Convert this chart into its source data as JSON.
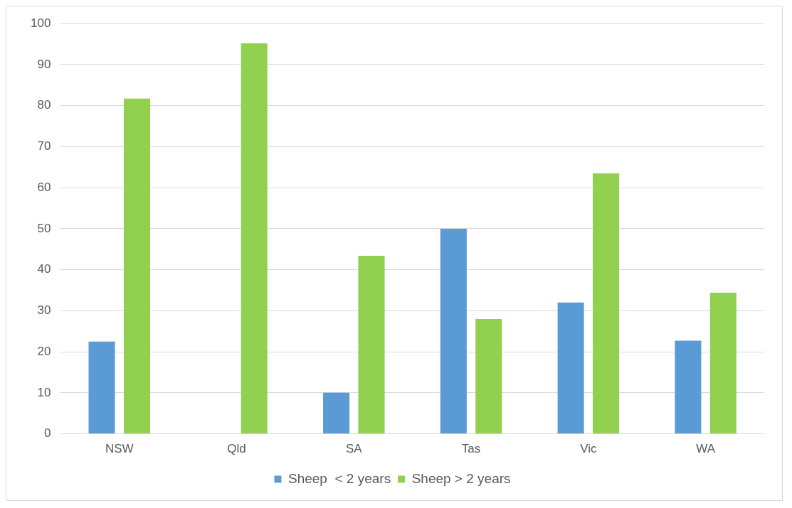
{
  "chart_data": {
    "type": "bar",
    "categories": [
      "NSW",
      "Qld",
      "SA",
      "Tas",
      "Vic",
      "WA"
    ],
    "series": [
      {
        "name": "Sheep  < 2 years",
        "color": "#5b9bd5",
        "values": [
          22.5,
          0,
          10,
          50,
          32,
          22.7
        ]
      },
      {
        "name": "Sheep > 2 years",
        "color": "#92d050",
        "values": [
          81.7,
          95.2,
          43.4,
          28,
          63.5,
          34.4
        ]
      }
    ],
    "ylim": [
      0,
      100
    ],
    "yticks": [
      0,
      10,
      20,
      30,
      40,
      50,
      60,
      70,
      80,
      90,
      100
    ],
    "grid": "y",
    "legend": "bottom"
  }
}
